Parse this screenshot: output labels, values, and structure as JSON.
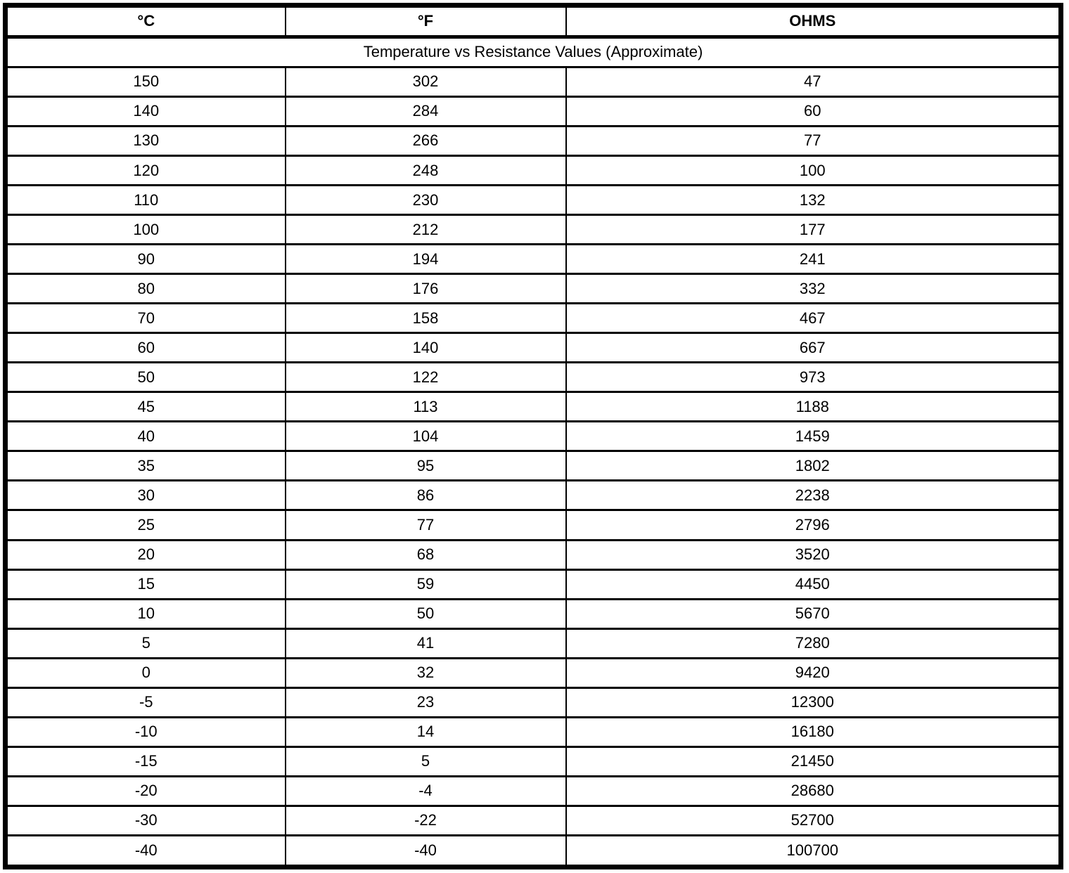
{
  "colors": {
    "border": "#000000",
    "text": "#000000",
    "background": "#ffffff"
  },
  "table": {
    "headers": [
      "°C",
      "°F",
      "OHMS"
    ],
    "title": "Temperature vs Resistance Values (Approximate)",
    "rows": [
      {
        "c": "150",
        "f": "302",
        "ohms": "47"
      },
      {
        "c": "140",
        "f": "284",
        "ohms": "60"
      },
      {
        "c": "130",
        "f": "266",
        "ohms": "77"
      },
      {
        "c": "120",
        "f": "248",
        "ohms": "100"
      },
      {
        "c": "110",
        "f": "230",
        "ohms": "132"
      },
      {
        "c": "100",
        "f": "212",
        "ohms": "177"
      },
      {
        "c": "90",
        "f": "194",
        "ohms": "241"
      },
      {
        "c": "80",
        "f": "176",
        "ohms": "332"
      },
      {
        "c": "70",
        "f": "158",
        "ohms": "467"
      },
      {
        "c": "60",
        "f": "140",
        "ohms": "667"
      },
      {
        "c": "50",
        "f": "122",
        "ohms": "973"
      },
      {
        "c": "45",
        "f": "113",
        "ohms": "1188"
      },
      {
        "c": "40",
        "f": "104",
        "ohms": "1459"
      },
      {
        "c": "35",
        "f": "95",
        "ohms": "1802"
      },
      {
        "c": "30",
        "f": "86",
        "ohms": "2238"
      },
      {
        "c": "25",
        "f": "77",
        "ohms": "2796"
      },
      {
        "c": "20",
        "f": "68",
        "ohms": "3520"
      },
      {
        "c": "15",
        "f": "59",
        "ohms": "4450"
      },
      {
        "c": "10",
        "f": "50",
        "ohms": "5670"
      },
      {
        "c": "5",
        "f": "41",
        "ohms": "7280"
      },
      {
        "c": "0",
        "f": "32",
        "ohms": "9420"
      },
      {
        "c": "-5",
        "f": "23",
        "ohms": "12300"
      },
      {
        "c": "-10",
        "f": "14",
        "ohms": "16180"
      },
      {
        "c": "-15",
        "f": "5",
        "ohms": "21450"
      },
      {
        "c": "-20",
        "f": "-4",
        "ohms": "28680"
      },
      {
        "c": "-30",
        "f": "-22",
        "ohms": "52700"
      },
      {
        "c": "-40",
        "f": "-40",
        "ohms": "100700"
      }
    ]
  }
}
